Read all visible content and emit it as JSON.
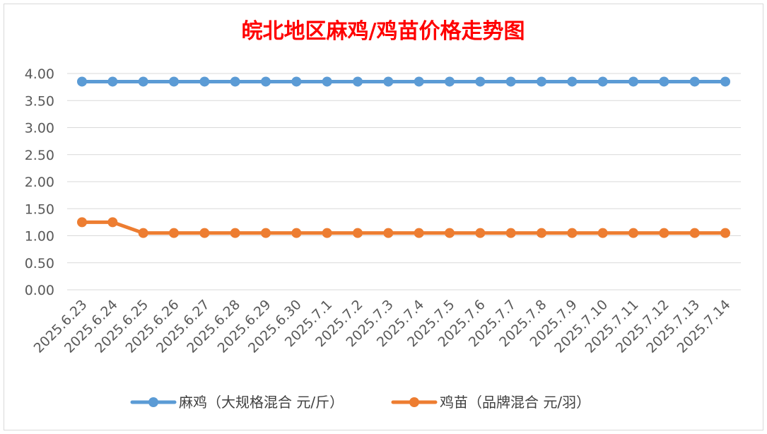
{
  "chart_data": {
    "type": "line",
    "title": "皖北地区麻鸡/鸡苗价格走势图",
    "xlabel": "",
    "ylabel": "",
    "ylim": [
      0,
      4
    ],
    "y_ticks": [
      "0.00",
      "0.50",
      "1.00",
      "1.50",
      "2.00",
      "2.50",
      "3.00",
      "3.50",
      "4.00"
    ],
    "grid": true,
    "legend_position": "bottom",
    "categories": [
      "2025.6.23",
      "2025.6.24",
      "2025.6.25",
      "2025.6.26",
      "2025.6.27",
      "2025.6.28",
      "2025.6.29",
      "2025.6.30",
      "2025.7.1",
      "2025.7.2",
      "2025.7.3",
      "2025.7.4",
      "2025.7.5",
      "2025.7.6",
      "2025.7.7",
      "2025.7.8",
      "2025.7.9",
      "2025.7.10",
      "2025.7.11",
      "2025.7.12",
      "2025.7.13",
      "2025.7.14"
    ],
    "series": [
      {
        "name": "麻鸡（大规格混合 元/斤）",
        "color": "#5b9bd5",
        "values": [
          3.85,
          3.85,
          3.85,
          3.85,
          3.85,
          3.85,
          3.85,
          3.85,
          3.85,
          3.85,
          3.85,
          3.85,
          3.85,
          3.85,
          3.85,
          3.85,
          3.85,
          3.85,
          3.85,
          3.85,
          3.85,
          3.85
        ]
      },
      {
        "name": "鸡苗（品牌混合 元/羽）",
        "color": "#ed7d31",
        "values": [
          1.25,
          1.25,
          1.05,
          1.05,
          1.05,
          1.05,
          1.05,
          1.05,
          1.05,
          1.05,
          1.05,
          1.05,
          1.05,
          1.05,
          1.05,
          1.05,
          1.05,
          1.05,
          1.05,
          1.05,
          1.05,
          1.05
        ]
      }
    ]
  }
}
